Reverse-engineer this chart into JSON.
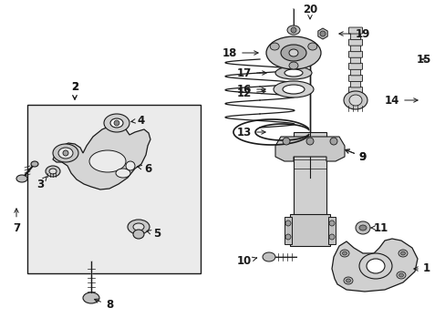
{
  "bg_color": "#ffffff",
  "box_bg": "#ebebeb",
  "line_color": "#1a1a1a",
  "figsize": [
    4.89,
    3.6
  ],
  "dpi": 100,
  "font_size": 8.5,
  "label_font_size": 8.5
}
